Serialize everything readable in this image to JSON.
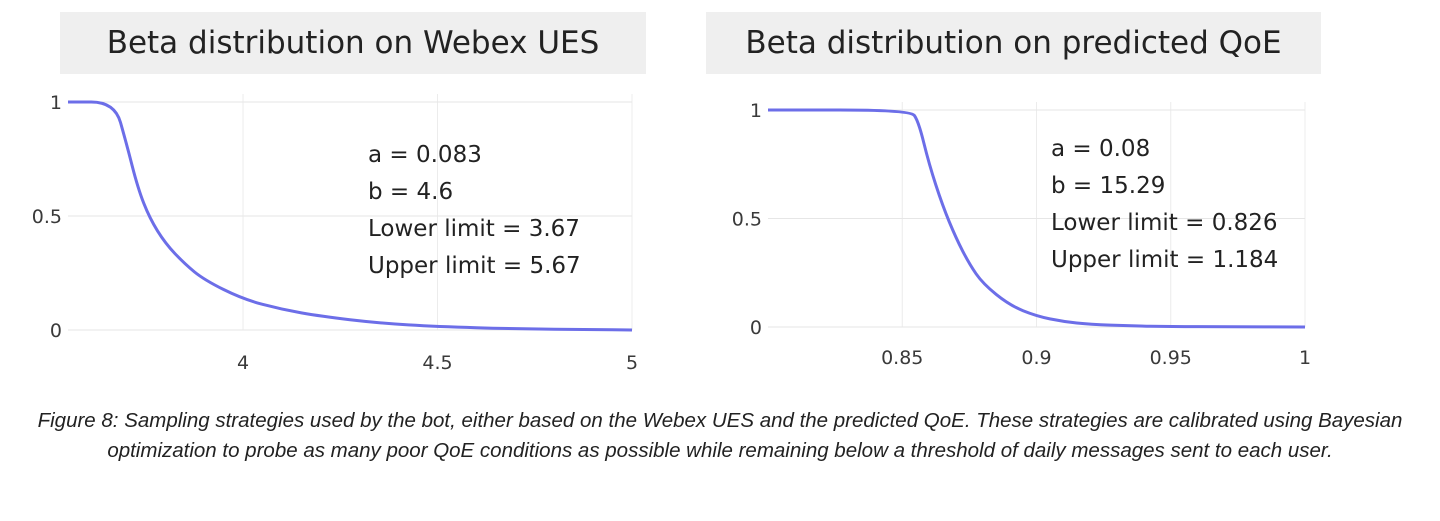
{
  "chart_data": [
    {
      "type": "line",
      "title": "Beta distribution on Webex UES",
      "xlabel": "",
      "ylabel": "",
      "xlim": [
        3.55,
        5.0
      ],
      "ylim": [
        0,
        1
      ],
      "x_ticks": [
        {
          "value": 4,
          "label": "4"
        },
        {
          "value": 4.5,
          "label": "4.5"
        },
        {
          "value": 5,
          "label": "5"
        }
      ],
      "y_ticks": [
        {
          "value": 0,
          "label": "0"
        },
        {
          "value": 0.5,
          "label": "0.5"
        },
        {
          "value": 1,
          "label": "1"
        }
      ],
      "grid": true,
      "color": "#6c6ee8",
      "series": [
        {
          "x": [
            3.55,
            3.67,
            3.7,
            3.73,
            3.76,
            3.8,
            3.85,
            3.9,
            4.0,
            4.1,
            4.2,
            4.35,
            4.5,
            4.7,
            4.9,
            5.0
          ],
          "y": [
            1.0,
            1.0,
            0.82,
            0.62,
            0.49,
            0.38,
            0.29,
            0.22,
            0.135,
            0.09,
            0.06,
            0.03,
            0.015,
            0.005,
            0.002,
            0.0
          ]
        }
      ],
      "annotations": [
        "a = 0.083",
        "b = 4.6",
        "Lower limit = 3.67",
        "Upper limit = 5.67"
      ]
    },
    {
      "type": "line",
      "title": "Beta distribution on predicted QoE",
      "xlabel": "",
      "ylabel": "",
      "xlim": [
        0.8,
        1.0
      ],
      "ylim": [
        0,
        1
      ],
      "x_ticks": [
        {
          "value": 0.85,
          "label": "0.85"
        },
        {
          "value": 0.9,
          "label": "0.9"
        },
        {
          "value": 0.95,
          "label": "0.95"
        },
        {
          "value": 1,
          "label": "1"
        }
      ],
      "y_ticks": [
        {
          "value": 0,
          "label": "0"
        },
        {
          "value": 0.5,
          "label": "0.5"
        },
        {
          "value": 1,
          "label": "1"
        }
      ],
      "grid": true,
      "color": "#6c6ee8",
      "series": [
        {
          "x": [
            0.8,
            0.853,
            0.856,
            0.86,
            0.865,
            0.87,
            0.875,
            0.88,
            0.89,
            0.9,
            0.91,
            0.92,
            0.935,
            0.95,
            0.97,
            1.0
          ],
          "y": [
            1.0,
            1.0,
            0.95,
            0.75,
            0.56,
            0.41,
            0.29,
            0.2,
            0.1,
            0.05,
            0.025,
            0.012,
            0.005,
            0.002,
            0.001,
            0.0
          ]
        }
      ],
      "annotations": [
        "a = 0.08",
        "b = 15.29",
        "Lower limit = 0.826",
        "Upper limit = 1.184"
      ]
    }
  ],
  "caption": "Figure 8: Sampling strategies used by the bot, either based on the Webex UES and the predicted QoE. These strategies are calibrated using Bayesian optimization to probe as many poor QoE conditions as possible while remaining below a threshold of daily messages sent to each user."
}
